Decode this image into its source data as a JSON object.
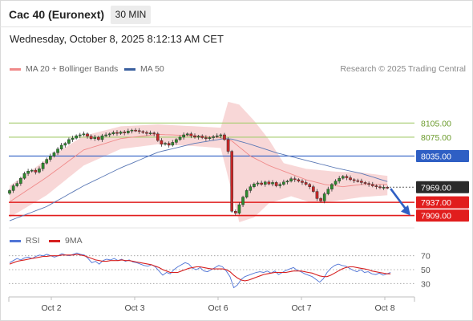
{
  "header": {
    "title": "Cac 40 (Euronext)",
    "timeframe": "30 MIN",
    "timestamp": "Wednesday, October 8, 2025 8:12:13 AM CET"
  },
  "legend": {
    "ma20_label": "MA 20 + Bollinger Bands",
    "ma50_label": "MA 50",
    "credit": "Research © 2025 Trading Central"
  },
  "rsi_legend": {
    "rsi_label": "RSI",
    "ma_label": "9MA"
  },
  "colors": {
    "bull": "#2e8b2e",
    "bear": "#c62828",
    "bollinger": "#f6c9c9",
    "ma20": "#f08a8a",
    "ma50": "#5a78b5",
    "resistance_green": "#a6cc6f",
    "pivot_blue": "#2f5fc4",
    "support_red": "#e11d1d",
    "rsi": "#4f74d6",
    "rsi_ma": "#d62020",
    "current": "#2a2a2a"
  },
  "chart_data": [
    {
      "type": "candlestick",
      "x_axis_labels": [
        "Oct 2",
        "Oct 3",
        "Oct 6",
        "Oct 7",
        "Oct 8"
      ],
      "ylim": [
        7893,
        8165
      ],
      "levels": [
        {
          "value": 8105.0,
          "label": "8105.00",
          "kind": "resistance"
        },
        {
          "value": 8075.0,
          "label": "8075.00",
          "kind": "resistance"
        },
        {
          "value": 8035.0,
          "label": "8035.00",
          "kind": "pivot"
        },
        {
          "value": 7937.0,
          "label": "7937.00",
          "kind": "support"
        },
        {
          "value": 7909.0,
          "label": "7909.00",
          "kind": "support"
        }
      ],
      "current_price": {
        "value": 7969.0,
        "label": "7969.00"
      },
      "forecast_arrow": {
        "from": 7966,
        "to": 7909,
        "direction": "down"
      },
      "close": [
        7962,
        7972,
        7977,
        7988,
        7998,
        8003,
        8005,
        8001,
        8008,
        8020,
        8028,
        8035,
        8042,
        8050,
        8058,
        8062,
        8070,
        8073,
        8078,
        8080,
        8082,
        8077,
        8072,
        8075,
        8070,
        8078,
        8080,
        8082,
        8085,
        8083,
        8086,
        8084,
        8088,
        8090,
        8089,
        8087,
        8085,
        8083,
        8084,
        8082,
        8068,
        8060,
        8062,
        8058,
        8064,
        8070,
        8075,
        8080,
        8082,
        8078,
        8075,
        8077,
        8074,
        8072,
        8074,
        8076,
        8078,
        8080,
        8070,
        8045,
        7918,
        7914,
        7932,
        7948,
        7962,
        7970,
        7976,
        7978,
        7975,
        7980,
        7976,
        7979,
        7972,
        7975,
        7980,
        7982,
        7987,
        7985,
        7982,
        7979,
        7975,
        7970,
        7960,
        7945,
        7940,
        7955,
        7965,
        7975,
        7982,
        7988,
        7992,
        7989,
        7985,
        7983,
        7982,
        7979,
        7977,
        7975,
        7972,
        7970,
        7968,
        7969,
        7968
      ],
      "ma20_points": [
        [
          0,
          7938
        ],
        [
          10,
          7990
        ],
        [
          20,
          8048
        ],
        [
          30,
          8072
        ],
        [
          40,
          8081
        ],
        [
          50,
          8078
        ],
        [
          56,
          8075
        ],
        [
          60,
          8067
        ],
        [
          65,
          8035
        ],
        [
          70,
          8015
        ],
        [
          75,
          8000
        ],
        [
          80,
          7985
        ],
        [
          85,
          7975
        ],
        [
          90,
          7970
        ],
        [
          95,
          7975
        ],
        [
          102,
          7975
        ]
      ],
      "ma50_points": [
        [
          0,
          7898
        ],
        [
          10,
          7928
        ],
        [
          20,
          7972
        ],
        [
          30,
          8010
        ],
        [
          40,
          8043
        ],
        [
          50,
          8062
        ],
        [
          58,
          8072
        ],
        [
          60,
          8071
        ],
        [
          65,
          8060
        ],
        [
          72,
          8042
        ],
        [
          80,
          8026
        ],
        [
          88,
          8010
        ],
        [
          95,
          7998
        ],
        [
          102,
          7981
        ]
      ],
      "bollinger_upper": [
        [
          0,
          7972
        ],
        [
          10,
          8028
        ],
        [
          20,
          8078
        ],
        [
          30,
          8098
        ],
        [
          40,
          8102
        ],
        [
          50,
          8098
        ],
        [
          57,
          8095
        ],
        [
          59,
          8150
        ],
        [
          62,
          8144
        ],
        [
          66,
          8110
        ],
        [
          70,
          8070
        ],
        [
          74,
          8020
        ],
        [
          80,
          8008
        ],
        [
          88,
          8002
        ],
        [
          95,
          8000
        ],
        [
          102,
          7993
        ]
      ],
      "bollinger_lower": [
        [
          0,
          7905
        ],
        [
          10,
          7952
        ],
        [
          20,
          8015
        ],
        [
          30,
          8050
        ],
        [
          40,
          8060
        ],
        [
          50,
          8056
        ],
        [
          57,
          8052
        ],
        [
          59,
          7990
        ],
        [
          62,
          7895
        ],
        [
          66,
          7905
        ],
        [
          70,
          7935
        ],
        [
          76,
          7950
        ],
        [
          82,
          7935
        ],
        [
          88,
          7940
        ],
        [
          95,
          7948
        ],
        [
          102,
          7952
        ]
      ]
    },
    {
      "type": "line",
      "title": "RSI",
      "ylim": [
        20,
        80
      ],
      "y_ticks": [
        70,
        50,
        30
      ],
      "series": [
        {
          "name": "RSI",
          "values": [
            60,
            63,
            66,
            64,
            67,
            68,
            66,
            69,
            71,
            70,
            72,
            70,
            68,
            70,
            73,
            71,
            70,
            72,
            74,
            72,
            71,
            66,
            60,
            62,
            58,
            63,
            65,
            64,
            66,
            63,
            65,
            62,
            64,
            61,
            60,
            58,
            56,
            55,
            57,
            54,
            48,
            42,
            46,
            44,
            50,
            54,
            57,
            60,
            58,
            52,
            50,
            53,
            48,
            47,
            50,
            53,
            56,
            54,
            48,
            40,
            24,
            28,
            36,
            40,
            42,
            44,
            46,
            47,
            46,
            48,
            45,
            48,
            43,
            46,
            49,
            51,
            53,
            49,
            47,
            44,
            42,
            40,
            36,
            32,
            37,
            46,
            52,
            56,
            58,
            56,
            55,
            52,
            49,
            47,
            50,
            46,
            47,
            44,
            43,
            45,
            42,
            44,
            46
          ]
        },
        {
          "name": "9MA",
          "values": [
            58,
            60,
            62,
            63,
            64,
            65,
            66,
            67,
            68,
            69,
            69,
            70,
            70,
            70,
            71,
            71,
            71,
            71,
            72,
            71,
            70,
            68,
            66,
            64,
            63,
            62,
            62,
            63,
            63,
            63,
            64,
            63,
            63,
            62,
            61,
            60,
            59,
            58,
            57,
            55,
            53,
            50,
            48,
            46,
            46,
            46,
            48,
            50,
            52,
            53,
            54,
            54,
            53,
            52,
            51,
            51,
            51,
            51,
            50,
            47,
            42,
            38,
            35,
            34,
            35,
            37,
            39,
            41,
            43,
            44,
            45,
            46,
            46,
            46,
            46,
            47,
            48,
            48,
            48,
            47,
            46,
            45,
            43,
            41,
            40,
            40,
            42,
            45,
            48,
            51,
            53,
            54,
            54,
            53,
            52,
            51,
            50,
            48,
            47,
            46,
            45,
            44,
            44
          ]
        }
      ]
    }
  ]
}
